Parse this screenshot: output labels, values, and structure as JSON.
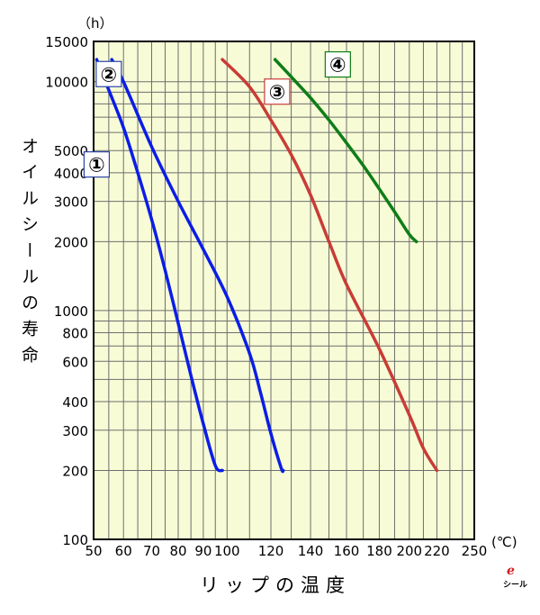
{
  "chart_data": {
    "type": "line",
    "title": "",
    "ylabel": "オイルシールの寿命",
    "xlabel": "リップの温度",
    "y_unit": "（h）",
    "x_unit": "(℃)",
    "x_scale": "reciprocal (1/T) temperature scale",
    "y_scale": "log",
    "xlim": [
      50,
      250
    ],
    "ylim": [
      100,
      15000
    ],
    "grid": true,
    "x_ticks": [
      50,
      60,
      70,
      80,
      90,
      100,
      120,
      140,
      160,
      180,
      200,
      220,
      250
    ],
    "x_grid": [
      50,
      55,
      60,
      65,
      70,
      75,
      80,
      85,
      90,
      95,
      100,
      110,
      120,
      130,
      140,
      150,
      160,
      170,
      180,
      190,
      200,
      210,
      220,
      230,
      240,
      250
    ],
    "y_ticks": [
      100,
      200,
      300,
      400,
      600,
      800,
      1000,
      2000,
      3000,
      4000,
      5000,
      10000,
      15000
    ],
    "y_grid": [
      100,
      200,
      300,
      400,
      500,
      600,
      700,
      800,
      900,
      1000,
      2000,
      3000,
      4000,
      5000,
      6000,
      7000,
      8000,
      9000,
      10000,
      15000
    ],
    "series": [
      {
        "name": "①",
        "color": "#0b1de6",
        "points": [
          [
            51,
            12500
          ],
          [
            55,
            9200
          ],
          [
            60,
            6300
          ],
          [
            65,
            4000
          ],
          [
            70,
            2500
          ],
          [
            75,
            1500
          ],
          [
            80,
            880
          ],
          [
            85,
            520
          ],
          [
            90,
            320
          ],
          [
            95,
            210
          ],
          [
            98,
            200
          ]
        ]
      },
      {
        "name": "②",
        "color": "#0b1de6",
        "points": [
          [
            56,
            12500
          ],
          [
            60,
            10000
          ],
          [
            70,
            5200
          ],
          [
            80,
            3000
          ],
          [
            90,
            1850
          ],
          [
            100,
            1150
          ],
          [
            110,
            650
          ],
          [
            115,
            440
          ],
          [
            120,
            290
          ],
          [
            125,
            205
          ],
          [
            126,
            200
          ]
        ]
      },
      {
        "name": "③",
        "color": "#c83c37",
        "points": [
          [
            98,
            12500
          ],
          [
            110,
            9500
          ],
          [
            120,
            6800
          ],
          [
            130,
            4800
          ],
          [
            140,
            3200
          ],
          [
            150,
            2000
          ],
          [
            160,
            1300
          ],
          [
            180,
            680
          ],
          [
            200,
            350
          ],
          [
            210,
            250
          ],
          [
            220,
            200
          ]
        ]
      },
      {
        "name": "④",
        "color": "#0f7d18",
        "points": [
          [
            122,
            12500
          ],
          [
            130,
            10500
          ],
          [
            140,
            8500
          ],
          [
            150,
            6800
          ],
          [
            160,
            5400
          ],
          [
            170,
            4300
          ],
          [
            180,
            3400
          ],
          [
            190,
            2700
          ],
          [
            200,
            2150
          ],
          [
            205,
            2000
          ]
        ]
      }
    ],
    "labels": [
      {
        "text": "①",
        "color": "#0b1de6",
        "border": "#2a44a8"
      },
      {
        "text": "②",
        "color": "#0b1de6",
        "border": "#2a44a8"
      },
      {
        "text": "③",
        "color": "#c83c37",
        "border": "#c83c37"
      },
      {
        "text": "④",
        "color": "#0f7d18",
        "border": "#0f7d18"
      }
    ],
    "colors": {
      "plot_bg": "#f7fcd6",
      "grid": "#6e6e6e",
      "frame": "#000000"
    }
  },
  "logo": {
    "text": "シール",
    "mark": "e"
  }
}
